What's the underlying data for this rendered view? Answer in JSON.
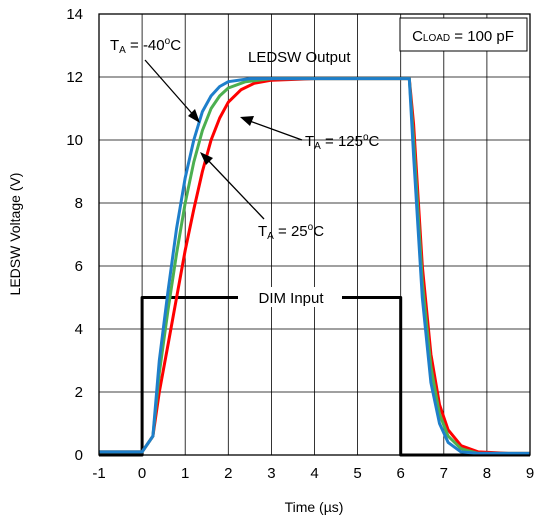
{
  "chart_data": {
    "type": "line",
    "xlabel": "Time (µs)",
    "ylabel": "LEDSW Voltage (V)",
    "xlim": [
      -1,
      9
    ],
    "ylim": [
      0,
      14
    ],
    "x_ticks": [
      "-1",
      "0",
      "1",
      "2",
      "3",
      "4",
      "5",
      "6",
      "7",
      "8",
      "9"
    ],
    "y_ticks": [
      "0",
      "2",
      "4",
      "6",
      "8",
      "10",
      "12",
      "14"
    ],
    "grid": true,
    "series": [
      {
        "name": "DIM Input",
        "color": "#000000",
        "points": [
          [
            -1.0,
            0
          ],
          [
            0.0,
            0
          ],
          [
            0.0,
            5
          ],
          [
            6.0,
            5
          ],
          [
            6.0,
            0
          ],
          [
            9.0,
            0
          ]
        ]
      },
      {
        "name": "TA = 125°C",
        "color": "#ff0000",
        "points": [
          [
            -1.0,
            0.1
          ],
          [
            0.0,
            0.1
          ],
          [
            0.1,
            0.3
          ],
          [
            0.25,
            0.6
          ],
          [
            0.4,
            2.0
          ],
          [
            0.6,
            3.5
          ],
          [
            0.8,
            5.0
          ],
          [
            1.0,
            6.5
          ],
          [
            1.2,
            7.8
          ],
          [
            1.4,
            9.0
          ],
          [
            1.6,
            10.0
          ],
          [
            1.8,
            10.7
          ],
          [
            2.0,
            11.2
          ],
          [
            2.3,
            11.6
          ],
          [
            2.6,
            11.8
          ],
          [
            3.0,
            11.9
          ],
          [
            4.0,
            11.95
          ],
          [
            5.0,
            11.95
          ],
          [
            6.0,
            11.95
          ],
          [
            6.2,
            11.95
          ],
          [
            6.3,
            10.5
          ],
          [
            6.5,
            6.0
          ],
          [
            6.7,
            3.2
          ],
          [
            6.9,
            1.6
          ],
          [
            7.1,
            0.8
          ],
          [
            7.4,
            0.3
          ],
          [
            7.8,
            0.1
          ],
          [
            8.5,
            0.05
          ],
          [
            9.0,
            0.05
          ]
        ]
      },
      {
        "name": "TA = 25°C",
        "color": "#4caf50",
        "points": [
          [
            -1.0,
            0.1
          ],
          [
            0.0,
            0.1
          ],
          [
            0.1,
            0.3
          ],
          [
            0.25,
            0.6
          ],
          [
            0.4,
            2.6
          ],
          [
            0.6,
            4.6
          ],
          [
            0.8,
            6.4
          ],
          [
            1.0,
            8.0
          ],
          [
            1.2,
            9.3
          ],
          [
            1.4,
            10.3
          ],
          [
            1.6,
            11.0
          ],
          [
            1.8,
            11.4
          ],
          [
            2.0,
            11.65
          ],
          [
            2.4,
            11.85
          ],
          [
            3.0,
            11.95
          ],
          [
            4.0,
            11.95
          ],
          [
            5.0,
            11.95
          ],
          [
            6.0,
            11.95
          ],
          [
            6.2,
            11.95
          ],
          [
            6.3,
            10.0
          ],
          [
            6.5,
            5.5
          ],
          [
            6.7,
            2.8
          ],
          [
            6.9,
            1.3
          ],
          [
            7.1,
            0.6
          ],
          [
            7.4,
            0.2
          ],
          [
            7.8,
            0.05
          ],
          [
            9.0,
            0.05
          ]
        ]
      },
      {
        "name": "TA = -40°C",
        "color": "#1e7fcb",
        "points": [
          [
            -1.0,
            0.1
          ],
          [
            0.0,
            0.1
          ],
          [
            0.1,
            0.3
          ],
          [
            0.25,
            0.6
          ],
          [
            0.4,
            3.0
          ],
          [
            0.6,
            5.2
          ],
          [
            0.8,
            7.2
          ],
          [
            1.0,
            8.8
          ],
          [
            1.2,
            10.0
          ],
          [
            1.4,
            10.9
          ],
          [
            1.6,
            11.4
          ],
          [
            1.8,
            11.7
          ],
          [
            2.0,
            11.85
          ],
          [
            2.5,
            11.95
          ],
          [
            3.0,
            11.95
          ],
          [
            4.0,
            11.95
          ],
          [
            5.0,
            11.95
          ],
          [
            6.0,
            11.95
          ],
          [
            6.2,
            11.95
          ],
          [
            6.3,
            9.5
          ],
          [
            6.5,
            5.0
          ],
          [
            6.7,
            2.3
          ],
          [
            6.9,
            1.0
          ],
          [
            7.1,
            0.4
          ],
          [
            7.4,
            0.1
          ],
          [
            7.8,
            0.05
          ],
          [
            9.0,
            0.05
          ]
        ]
      }
    ],
    "annotations": {
      "load_box": "CLOAD = 100 pF",
      "output_label": "LEDSW Output",
      "dim_label": "DIM Input",
      "ta_m40": "TA = -40°C",
      "ta_125": "TA = 125°C",
      "ta_25": "TA = 25°C"
    }
  }
}
